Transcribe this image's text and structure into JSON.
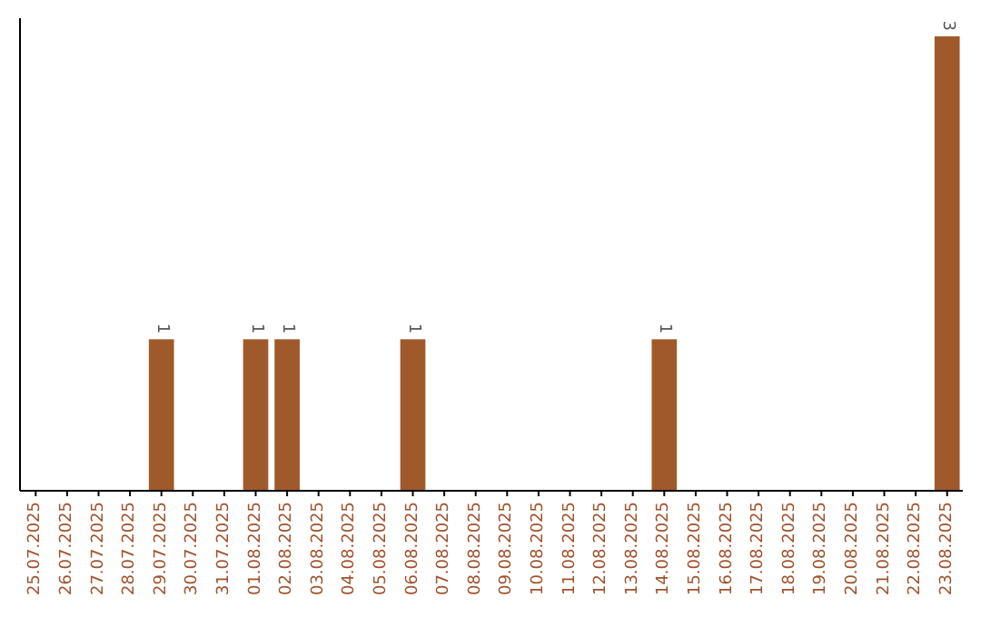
{
  "chart_data": {
    "type": "bar",
    "categories": [
      "25.07.2025",
      "26.07.2025",
      "27.07.2025",
      "28.07.2025",
      "29.07.2025",
      "30.07.2025",
      "31.07.2025",
      "01.08.2025",
      "02.08.2025",
      "03.08.2025",
      "04.08.2025",
      "05.08.2025",
      "06.08.2025",
      "07.08.2025",
      "08.08.2025",
      "09.08.2025",
      "10.08.2025",
      "11.08.2025",
      "12.08.2025",
      "13.08.2025",
      "14.08.2025",
      "15.08.2025",
      "16.08.2025",
      "17.08.2025",
      "18.08.2025",
      "19.08.2025",
      "20.08.2025",
      "21.08.2025",
      "22.08.2025",
      "23.08.2025"
    ],
    "values": [
      0,
      0,
      0,
      0,
      1,
      0,
      0,
      1,
      1,
      0,
      0,
      0,
      1,
      0,
      0,
      0,
      0,
      0,
      0,
      0,
      1,
      0,
      0,
      0,
      0,
      0,
      0,
      0,
      0,
      3
    ],
    "value_labels": [
      null,
      null,
      null,
      null,
      "1",
      null,
      null,
      "1",
      "1",
      null,
      null,
      null,
      "1",
      null,
      null,
      null,
      null,
      null,
      null,
      null,
      "1",
      null,
      null,
      null,
      null,
      null,
      null,
      null,
      null,
      "3"
    ],
    "color": "#a0592a"
  }
}
